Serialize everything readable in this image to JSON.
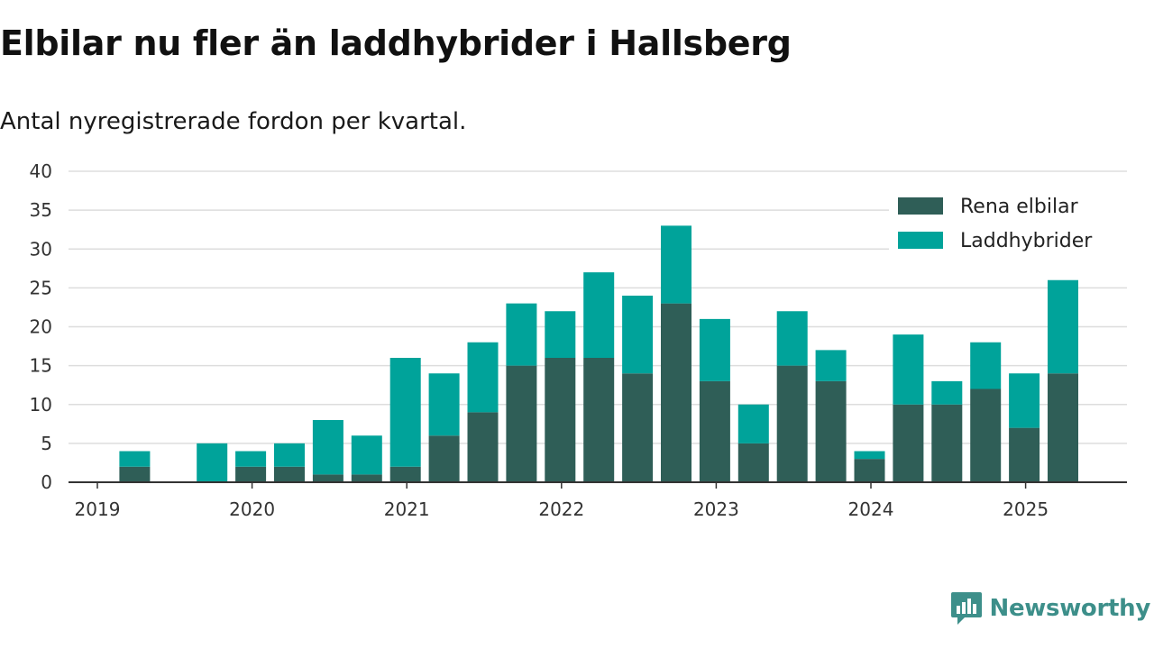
{
  "title": "Elbilar nu fler än laddhybrider i Hallsberg",
  "subtitle": "Antal nyregistrerade fordon per kvartal.",
  "brand": {
    "name": "Newsworthy",
    "icon": "newsworthy-logo-icon",
    "color": "#3d8f8a"
  },
  "colors": {
    "rena_elbilar": "#2f5e57",
    "laddhybrider": "#00a39a",
    "grid": "#dddddd",
    "axis": "#333333"
  },
  "chart_data": {
    "type": "bar",
    "stacked": true,
    "categories": [
      "2019 Q1",
      "2019 Q2",
      "2019 Q3",
      "2019 Q4",
      "2020 Q1",
      "2020 Q2",
      "2020 Q3",
      "2020 Q4",
      "2021 Q1",
      "2021 Q2",
      "2021 Q3",
      "2021 Q4",
      "2022 Q1",
      "2022 Q2",
      "2022 Q3",
      "2022 Q4",
      "2023 Q1",
      "2023 Q2",
      "2023 Q3",
      "2023 Q4",
      "2024 Q1",
      "2024 Q2",
      "2024 Q3",
      "2024 Q4",
      "2025 Q1",
      "2025 Q2"
    ],
    "series": [
      {
        "name": "Rena elbilar",
        "values": [
          0,
          2,
          0,
          0,
          2,
          2,
          1,
          1,
          2,
          6,
          9,
          15,
          16,
          16,
          14,
          23,
          13,
          5,
          15,
          13,
          3,
          10,
          10,
          12,
          7,
          14
        ]
      },
      {
        "name": "Laddhybrider",
        "values": [
          0,
          2,
          0,
          5,
          2,
          3,
          7,
          5,
          14,
          8,
          9,
          8,
          6,
          11,
          10,
          10,
          8,
          5,
          7,
          4,
          1,
          9,
          3,
          6,
          7,
          12
        ]
      }
    ],
    "x_tick_labels": [
      "2019",
      "2020",
      "2021",
      "2022",
      "2023",
      "2024",
      "2025"
    ],
    "y_ticks": [
      0,
      5,
      10,
      15,
      20,
      25,
      30,
      35,
      40
    ],
    "ylim": [
      0,
      40
    ],
    "xlabel": "",
    "ylabel": "",
    "grid": true,
    "legend_position": "top-right"
  }
}
